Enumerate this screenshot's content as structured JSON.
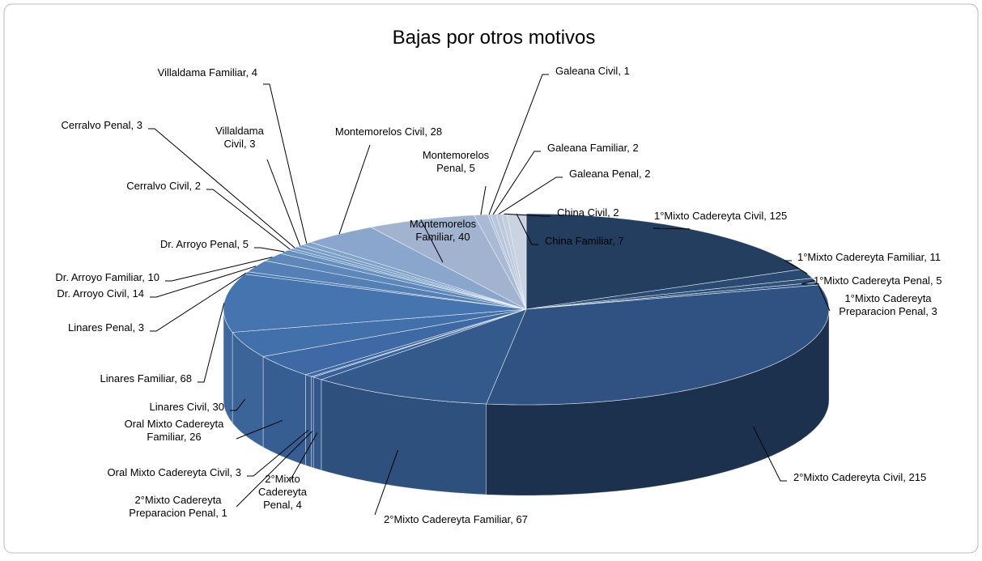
{
  "chart_data": {
    "type": "pie3d",
    "title": "Bajas por otros motivos",
    "categories": [
      "1°Mixto Cadereyta Civil",
      "1°Mixto Cadereyta Familiar",
      "1°Mixto Cadereyta Penal",
      "1°Mixto Cadereyta Preparacion Penal",
      "2°Mixto Cadereyta Civil",
      "2°Mixto Cadereyta Familiar",
      "2°Mixto Cadereyta Penal",
      "2°Mixto Cadereyta Preparacion Penal",
      "Oral Mixto Cadereyta Civil",
      "Oral Mixto Cadereyta Familiar",
      "Linares Civil",
      "Linares Familiar",
      "Linares Penal",
      "Dr. Arroyo Civil",
      "Dr. Arroyo Familiar",
      "Dr. Arroyo Penal",
      "Cerralvo Civil",
      "Cerralvo Penal",
      "Villaldama Civil",
      "Villaldama Familiar",
      "Montemorelos Civil",
      "Montemorelos Familiar",
      "Montemorelos Penal",
      "Galeana Civil",
      "Galeana Familiar",
      "Galeana Penal",
      "China Civil",
      "China Familiar"
    ],
    "values": [
      125,
      11,
      5,
      3,
      215,
      67,
      4,
      1,
      3,
      26,
      30,
      68,
      3,
      14,
      10,
      5,
      2,
      3,
      3,
      4,
      28,
      40,
      5,
      1,
      2,
      2,
      2,
      7
    ],
    "colors": [
      "#243e60",
      "#2a4a72",
      "#2e5078",
      "#30547e",
      "#2f5282",
      "#345a8c",
      "#38619a",
      "#3a639c",
      "#3c669f",
      "#3e69a4",
      "#4270aa",
      "#4674ae",
      "#4a78b0",
      "#5580b6",
      "#5e87ba",
      "#6690bf",
      "#6c94c2",
      "#7299c4",
      "#789dc6",
      "#7ea2c8",
      "#8aa6cc",
      "#a2b3d0",
      "#aab9d4",
      "#b2c0d8",
      "#b8c5da",
      "#bec9dc",
      "#c4cede",
      "#cad3e2"
    ]
  }
}
